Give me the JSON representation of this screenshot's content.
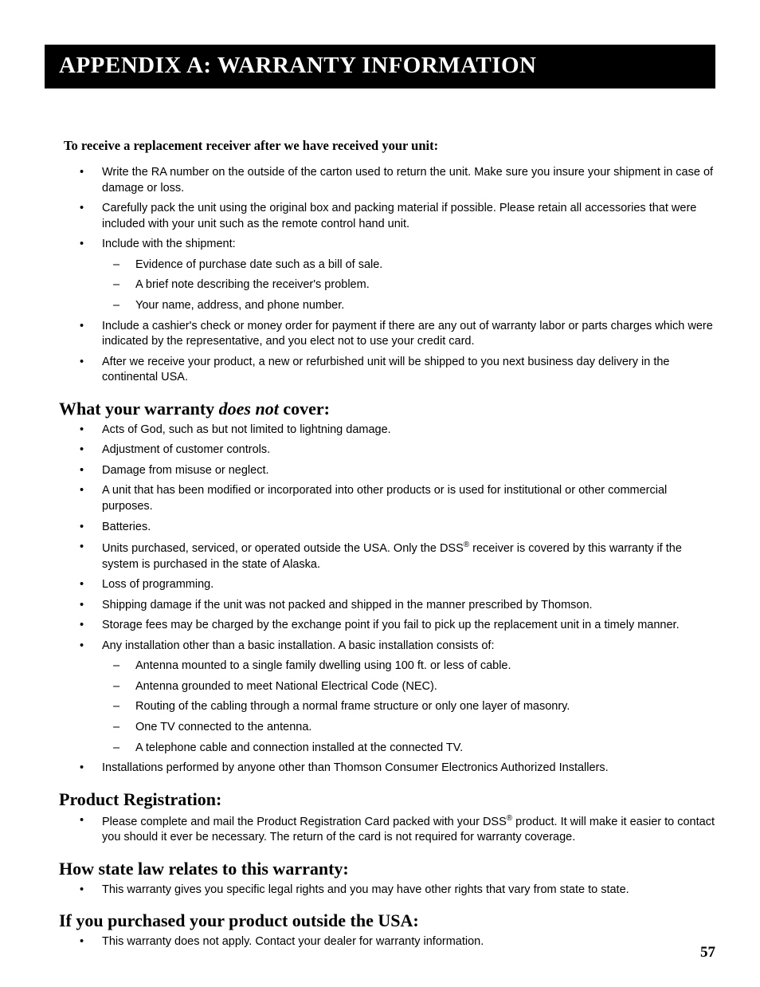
{
  "banner_title": "APPENDIX A: WARRANTY INFORMATION",
  "page_number": "57",
  "lead_in": "To receive a replacement receiver after we have received your unit:",
  "replacement_steps": [
    "Write the RA number on the outside of the carton used to return the unit. Make sure you insure your shipment in case of damage or loss.",
    "Carefully pack the unit using the original box and packing material if possible. Please retain all accessories that were included with your unit such as the remote control hand unit.",
    "Include with the shipment:"
  ],
  "include_with_shipment": [
    "Evidence of purchase date such as a bill of sale.",
    "A brief note describing the receiver's problem.",
    "Your name, address, and phone number."
  ],
  "replacement_steps_after": [
    "Include a cashier's check or money order for payment if there are any out of warranty labor or parts charges which were indicated by the representative, and you elect not to use your credit card.",
    "After we receive your product, a new or refurbished unit will be shipped to you next business day delivery in the continental USA."
  ],
  "not_cover_heading_pre": "What your warranty ",
  "not_cover_heading_ital": "does not",
  "not_cover_heading_post": " cover:",
  "not_cover_items_pre": [
    "Acts of God, such as but not limited to lightning damage.",
    "Adjustment of customer controls.",
    "Damage from misuse or neglect.",
    "A unit that has been modified or incorporated into other products or is used for institutional or other commercial purposes.",
    "Batteries."
  ],
  "not_cover_dss_pre": "Units purchased, serviced, or operated outside the USA.  Only the DSS",
  "not_cover_dss_post": " receiver is covered by this warranty if the system is purchased in the state of Alaska.",
  "not_cover_items_mid": [
    "Loss of programming.",
    "Shipping damage if the unit was not packed and shipped in the manner prescribed by Thomson.",
    "Storage fees may be charged by the exchange point if you fail to pick up the replacement unit in a timely manner.",
    "Any installation other than a basic installation. A basic installation consists of:"
  ],
  "basic_install": [
    "Antenna mounted to a single family dwelling using 100 ft. or less of cable.",
    "Antenna grounded to meet National Electrical Code (NEC).",
    "Routing of the cabling through a normal frame structure or only one layer of masonry.",
    "One TV connected to the antenna.",
    "A telephone cable and connection installed at the connected TV."
  ],
  "not_cover_items_post": [
    "Installations performed by anyone other than Thomson Consumer Electronics Authorized Installers."
  ],
  "registration_heading": "Product Registration:",
  "registration_pre": "Please complete and mail the Product Registration Card packed with your DSS",
  "registration_post": " product. It will make it easier to contact you should it ever be necessary. The return of the card is not required for warranty coverage.",
  "statelaw_heading": "How state law relates to this warranty:",
  "statelaw_item": "This warranty gives you specific legal rights and you may have other rights that vary from state to state.",
  "outside_heading": "If you purchased your product outside the USA:",
  "outside_item": "This warranty does not apply.  Contact your dealer for warranty information.",
  "reg_mark": "®"
}
